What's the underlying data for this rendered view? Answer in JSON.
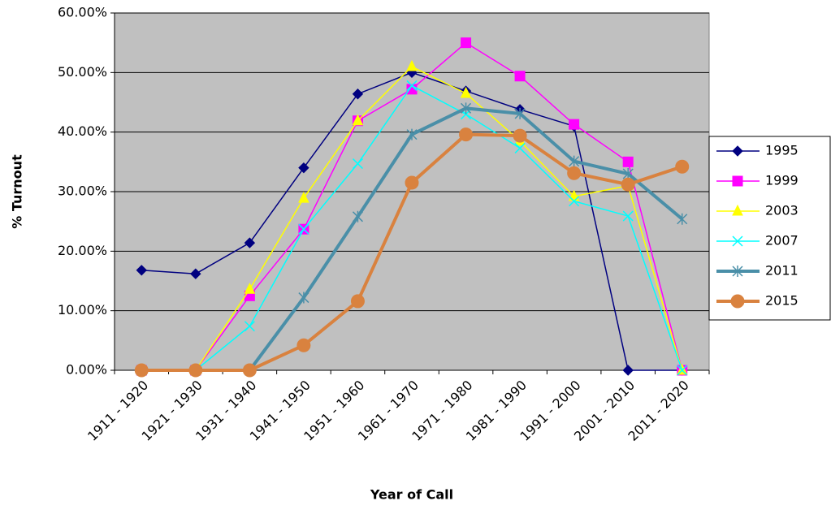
{
  "chart_data": {
    "type": "line",
    "x_label": "Year of Call",
    "y_label": "% Turnout",
    "categories": [
      "1911 - 1920",
      "1921 - 1930",
      "1931 - 1940",
      "1941 - 1950",
      "1951 - 1960",
      "1961 - 1970",
      "1971 - 1980",
      "1981 - 1990",
      "1991 - 2000",
      "2001 - 2010",
      "2011 - 2020"
    ],
    "ylim": [
      0,
      60
    ],
    "yticks": [
      {
        "value": 0,
        "label": "0.00%"
      },
      {
        "value": 10,
        "label": "10.00%"
      },
      {
        "value": 20,
        "label": "20.00%"
      },
      {
        "value": 30,
        "label": "30.00%"
      },
      {
        "value": 40,
        "label": "40.00%"
      },
      {
        "value": 50,
        "label": "50.00%"
      },
      {
        "value": 60,
        "label": "60.00%"
      }
    ],
    "grid": true,
    "legend": "right",
    "series": [
      {
        "name": "1995",
        "color": "#000080",
        "marker": "diamond",
        "width": 1.5,
        "values": [
          16.8,
          16.2,
          21.4,
          34.0,
          46.4,
          50.0,
          46.9,
          43.8,
          41.0,
          0,
          0
        ]
      },
      {
        "name": "1999",
        "color": "#ff00ff",
        "marker": "square",
        "width": 1.5,
        "values": [
          0,
          0,
          12.5,
          23.7,
          41.9,
          47.2,
          55.0,
          49.4,
          41.3,
          35.0,
          0
        ]
      },
      {
        "name": "2003",
        "color": "#ffff00",
        "marker": "triangle",
        "width": 1.5,
        "values": [
          0,
          0,
          13.6,
          28.9,
          41.9,
          51.0,
          46.5,
          38.5,
          29.2,
          31.0,
          0
        ]
      },
      {
        "name": "2007",
        "color": "#00ffff",
        "marker": "x",
        "width": 1.5,
        "values": [
          0,
          0,
          7.4,
          23.7,
          34.7,
          47.8,
          43.0,
          37.3,
          28.4,
          25.9,
          0
        ]
      },
      {
        "name": "2011",
        "color": "#4a8fa8",
        "marker": "star",
        "width": 4,
        "values": [
          0,
          0,
          0,
          12.2,
          25.8,
          39.6,
          44.0,
          43.1,
          35.1,
          33.0,
          25.4
        ]
      },
      {
        "name": "2015",
        "color": "#d9823f",
        "marker": "circle",
        "width": 4,
        "values": [
          0,
          0,
          0,
          4.2,
          11.6,
          31.5,
          39.6,
          39.4,
          33.1,
          31.2,
          34.2
        ]
      }
    ]
  }
}
